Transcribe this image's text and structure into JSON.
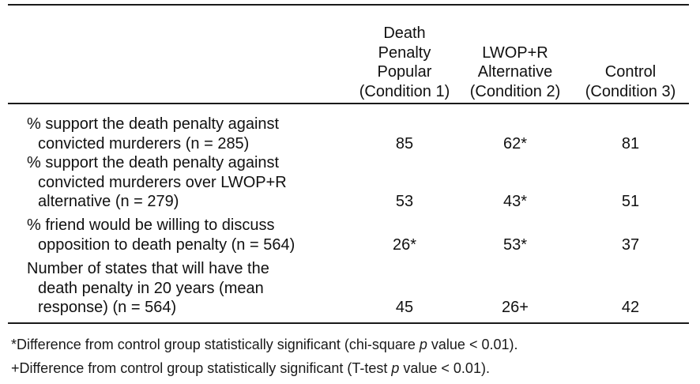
{
  "columns": [
    {
      "lines": [
        "Death",
        "Penalty",
        "Popular",
        "(Condition 1)"
      ]
    },
    {
      "lines": [
        "LWOP+R",
        "Alternative",
        "(Condition 2)"
      ]
    },
    {
      "lines": [
        "Control",
        "(Condition 3)"
      ]
    }
  ],
  "rows": [
    {
      "label_lines": [
        "% support the death penalty against",
        "convicted murderers (n = 285)"
      ],
      "values": [
        "85",
        "62*",
        "81"
      ]
    },
    {
      "label_lines": [
        "% support the death penalty against",
        "convicted murderers over LWOP+R",
        "alternative (n = 279)"
      ],
      "values": [
        "53",
        "43*",
        "51"
      ]
    },
    {
      "label_lines": [
        "% friend would be willing to discuss",
        "opposition to death penalty (n = 564)"
      ],
      "values": [
        "26*",
        "53*",
        "37"
      ]
    },
    {
      "label_lines": [
        "Number of states that will have the",
        "death penalty in 20 years (mean",
        "response) (n = 564)"
      ],
      "values": [
        "45",
        "26+",
        "42"
      ]
    }
  ],
  "footnotes": [
    {
      "before": "*Difference from control group statistically significant (chi-square ",
      "italic": "p",
      "after": " value < 0.01)."
    },
    {
      "before": "+Difference from control group statistically significant (T-test ",
      "italic": "p",
      "after": " value < 0.01)."
    }
  ]
}
